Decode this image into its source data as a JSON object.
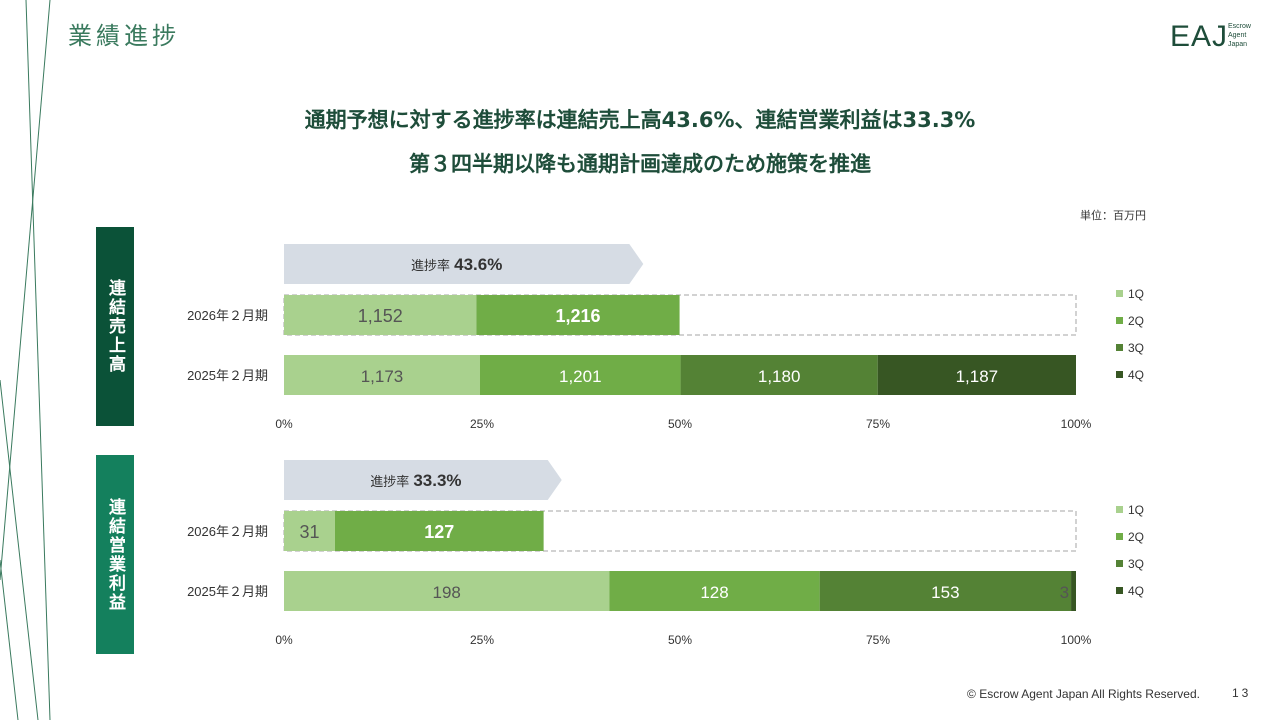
{
  "page": {
    "title": "業績進捗",
    "headline_1": "通期予想に対する進捗率は連結売上高43.6%、連結営業利益は33.3%",
    "headline_2": "第３四半期以降も通期計画達成のため施策を推進",
    "unit": "単位：百万円",
    "copyright": "© Escrow Agent Japan All Rights Reserved.",
    "page_number": "13"
  },
  "logo": {
    "main": "EAJ",
    "sub": [
      "Escrow",
      "Agent",
      "Japan"
    ]
  },
  "chart_data": [
    {
      "type": "bar",
      "stacked": "percent",
      "orientation": "horizontal",
      "section_label": "連結売上高",
      "progress_label": "進捗率",
      "progress_value": "43.6%",
      "categories": [
        "2026年２月期",
        "2025年２月期"
      ],
      "series": [
        {
          "name": "1Q",
          "values": [
            1152,
            1173
          ]
        },
        {
          "name": "2Q",
          "values": [
            1216,
            1201
          ]
        },
        {
          "name": "3Q",
          "values": [
            null,
            1180
          ]
        },
        {
          "name": "4Q",
          "values": [
            null,
            1187
          ]
        }
      ],
      "x_ticks": [
        "0%",
        "25%",
        "50%",
        "75%",
        "100%"
      ],
      "xlim": [
        0,
        100
      ],
      "legend": "right"
    },
    {
      "type": "bar",
      "stacked": "percent",
      "orientation": "horizontal",
      "section_label": "連結営業利益",
      "progress_label": "進捗率",
      "progress_value": "33.3%",
      "categories": [
        "2026年２月期",
        "2025年２月期"
      ],
      "series": [
        {
          "name": "1Q",
          "values": [
            31,
            198
          ]
        },
        {
          "name": "2Q",
          "values": [
            127,
            128
          ]
        },
        {
          "name": "3Q",
          "values": [
            null,
            153
          ]
        },
        {
          "name": "4Q",
          "values": [
            null,
            3
          ]
        }
      ],
      "x_ticks": [
        "0%",
        "25%",
        "50%",
        "75%",
        "100%"
      ],
      "xlim": [
        0,
        100
      ],
      "legend": "right"
    }
  ],
  "colors": {
    "q1": "#a9d18e",
    "q2": "#70ad47",
    "q3": "#548235",
    "q4": "#375623",
    "progress_arrow": "#d6dce4",
    "forecast_border": "#a6a6a6"
  }
}
